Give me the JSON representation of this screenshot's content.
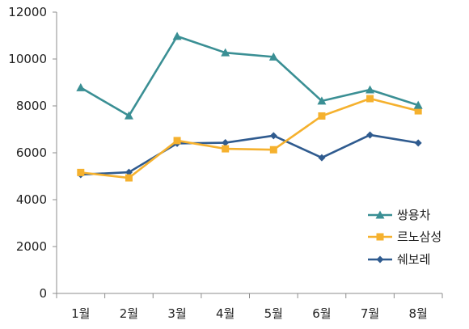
{
  "chart_data": {
    "type": "line",
    "categories": [
      "1월",
      "2월",
      "3월",
      "4월",
      "5월",
      "6월",
      "7월",
      "8월"
    ],
    "ylim": [
      0,
      12000
    ],
    "yticks": [
      0,
      2000,
      4000,
      6000,
      8000,
      10000,
      12000
    ],
    "grid": false,
    "legend_position": "right",
    "series": [
      {
        "name": "쌍용차",
        "color": "#3a8f94",
        "marker": "triangle",
        "values": [
          8780,
          7580,
          10970,
          10270,
          10090,
          8210,
          8690,
          8030
        ]
      },
      {
        "name": "르노삼성",
        "color": "#f5b12e",
        "marker": "square",
        "values": [
          5160,
          4930,
          6520,
          6170,
          6130,
          7570,
          8310,
          7790
        ]
      },
      {
        "name": "쉐보레",
        "color": "#2f5b8f",
        "marker": "diamond",
        "values": [
          5070,
          5170,
          6400,
          6430,
          6730,
          5790,
          6760,
          6420
        ]
      }
    ]
  }
}
